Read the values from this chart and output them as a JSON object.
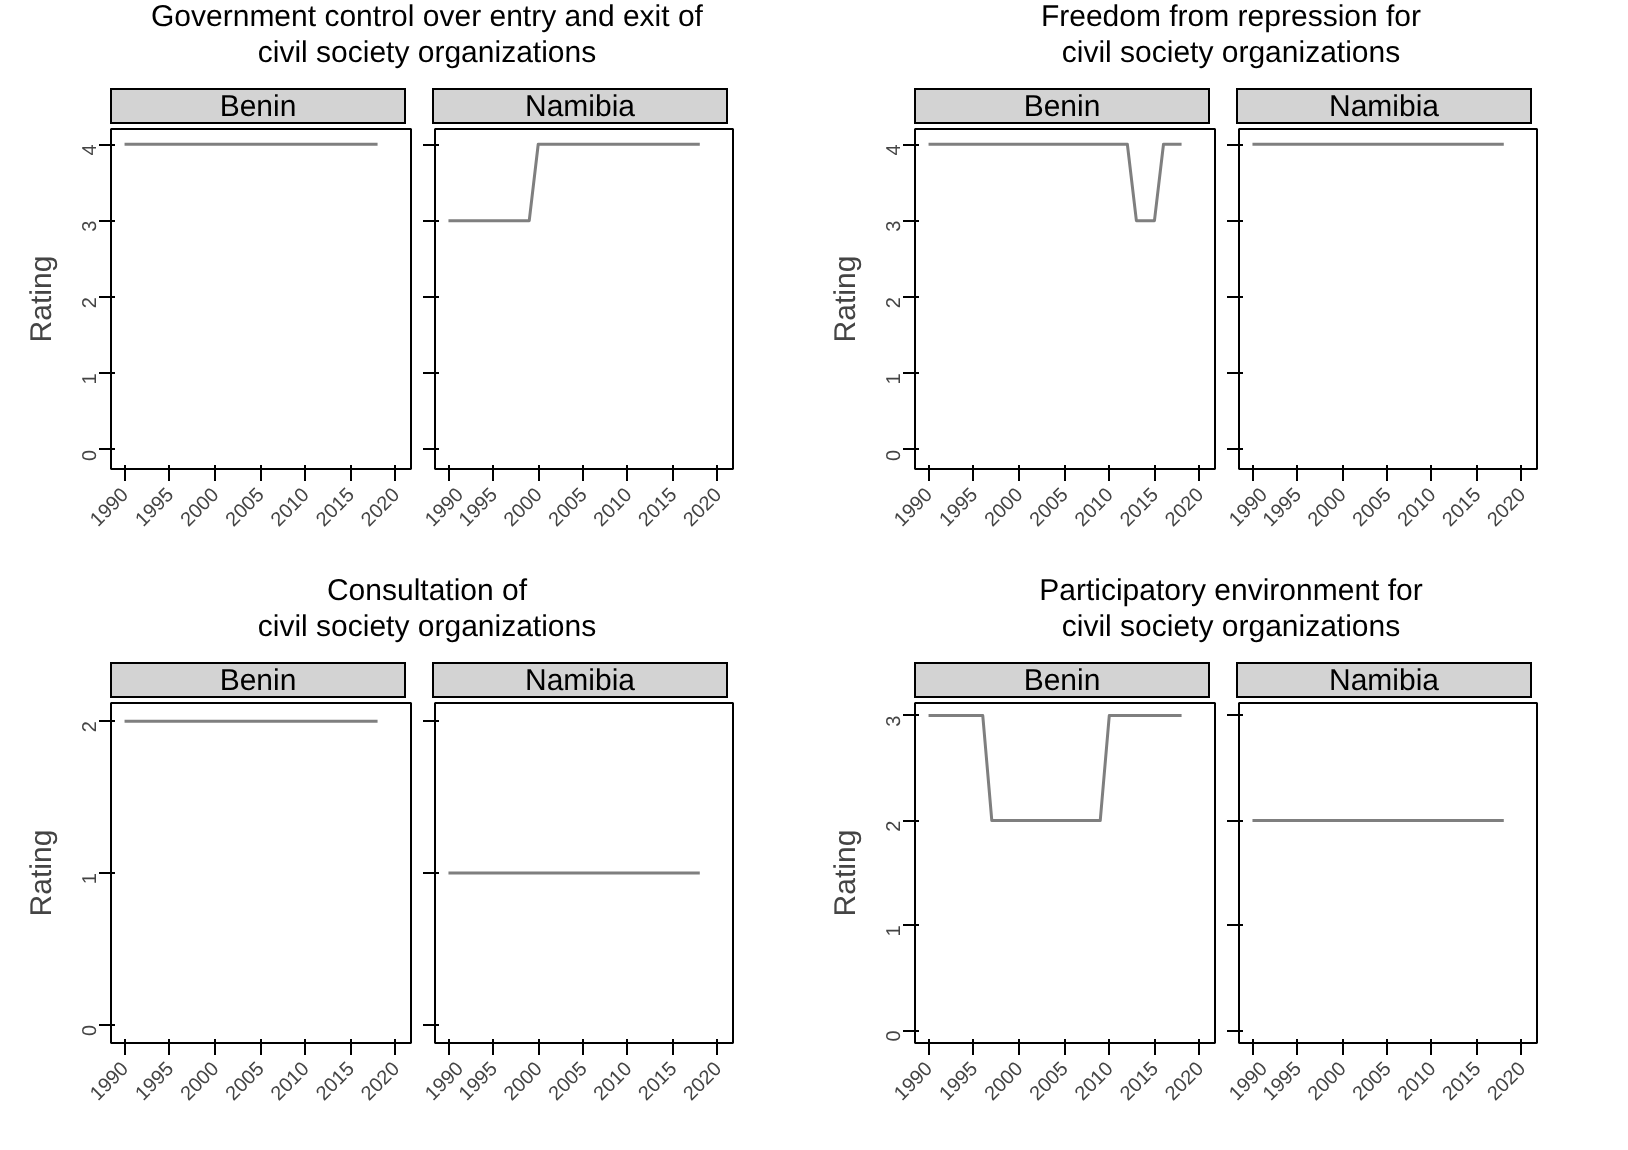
{
  "chart_data": [
    {
      "type": "line",
      "title": "Government control over entry and exit of\ncivil society organizations",
      "subtitle": "Benin",
      "ylabel": "Rating",
      "x": [
        1990,
        1991,
        1992,
        1993,
        1994,
        1995,
        1996,
        1997,
        1998,
        1999,
        2000,
        2001,
        2002,
        2003,
        2004,
        2005,
        2006,
        2007,
        2008,
        2009,
        2010,
        2011,
        2012,
        2013,
        2014,
        2015,
        2016,
        2017,
        2018
      ],
      "series": [
        {
          "color": "#7f7f7f",
          "values": [
            4,
            4,
            4,
            4,
            4,
            4,
            4,
            4,
            4,
            4,
            4,
            4,
            4,
            4,
            4,
            4,
            4,
            4,
            4,
            4,
            4,
            4,
            4,
            4,
            4,
            4,
            4,
            4,
            4
          ]
        }
      ],
      "xlim": [
        1988.5,
        2021.7
      ],
      "xticks": [
        1990,
        1995,
        2000,
        2005,
        2010,
        2015,
        2020
      ],
      "ylim": [
        -0.25,
        4.2
      ],
      "yticks": [
        0,
        1,
        2,
        3,
        4
      ]
    },
    {
      "type": "line",
      "subtitle": "Namibia",
      "x": [
        1990,
        1991,
        1992,
        1993,
        1994,
        1995,
        1996,
        1997,
        1998,
        1999,
        2000,
        2001,
        2002,
        2003,
        2004,
        2005,
        2006,
        2007,
        2008,
        2009,
        2010,
        2011,
        2012,
        2013,
        2014,
        2015,
        2016,
        2017,
        2018
      ],
      "series": [
        {
          "color": "#7f7f7f",
          "values": [
            3,
            3,
            3,
            3,
            3,
            3,
            3,
            3,
            3,
            3,
            4,
            4,
            4,
            4,
            4,
            4,
            4,
            4,
            4,
            4,
            4,
            4,
            4,
            4,
            4,
            4,
            4,
            4,
            4
          ]
        }
      ],
      "xlim": [
        1988.5,
        2021.7
      ],
      "xticks": [
        1990,
        1995,
        2000,
        2005,
        2010,
        2015,
        2020
      ],
      "ylim": [
        -0.25,
        4.2
      ],
      "yticks": [
        0,
        1,
        2,
        3,
        4
      ],
      "tick_labels": "x"
    },
    {
      "type": "line",
      "title": "Freedom from repression for\ncivil society organizations",
      "subtitle": "Benin",
      "ylabel": "Rating",
      "x": [
        1990,
        1991,
        1992,
        1993,
        1994,
        1995,
        1996,
        1997,
        1998,
        1999,
        2000,
        2001,
        2002,
        2003,
        2004,
        2005,
        2006,
        2007,
        2008,
        2009,
        2010,
        2011,
        2012,
        2013,
        2014,
        2015,
        2016,
        2017,
        2018
      ],
      "series": [
        {
          "color": "#7f7f7f",
          "values": [
            4,
            4,
            4,
            4,
            4,
            4,
            4,
            4,
            4,
            4,
            4,
            4,
            4,
            4,
            4,
            4,
            4,
            4,
            4,
            4,
            4,
            4,
            4,
            3,
            3,
            3,
            4,
            4,
            4
          ]
        }
      ],
      "xlim": [
        1988.5,
        2021.7
      ],
      "xticks": [
        1990,
        1995,
        2000,
        2005,
        2010,
        2015,
        2020
      ],
      "ylim": [
        -0.25,
        4.2
      ],
      "yticks": [
        0,
        1,
        2,
        3,
        4
      ]
    },
    {
      "type": "line",
      "subtitle": "Namibia",
      "x": [
        1990,
        1991,
        1992,
        1993,
        1994,
        1995,
        1996,
        1997,
        1998,
        1999,
        2000,
        2001,
        2002,
        2003,
        2004,
        2005,
        2006,
        2007,
        2008,
        2009,
        2010,
        2011,
        2012,
        2013,
        2014,
        2015,
        2016,
        2017,
        2018
      ],
      "series": [
        {
          "color": "#7f7f7f",
          "values": [
            4,
            4,
            4,
            4,
            4,
            4,
            4,
            4,
            4,
            4,
            4,
            4,
            4,
            4,
            4,
            4,
            4,
            4,
            4,
            4,
            4,
            4,
            4,
            4,
            4,
            4,
            4,
            4,
            4
          ]
        }
      ],
      "xlim": [
        1988.5,
        2021.7
      ],
      "xticks": [
        1990,
        1995,
        2000,
        2005,
        2010,
        2015,
        2020
      ],
      "ylim": [
        -0.25,
        4.2
      ],
      "yticks": [
        0,
        1,
        2,
        3,
        4
      ],
      "tick_labels": "x"
    },
    {
      "type": "line",
      "title": "Consultation of\ncivil society organizations",
      "subtitle": "Benin",
      "ylabel": "Rating",
      "x": [
        1990,
        1991,
        1992,
        1993,
        1994,
        1995,
        1996,
        1997,
        1998,
        1999,
        2000,
        2001,
        2002,
        2003,
        2004,
        2005,
        2006,
        2007,
        2008,
        2009,
        2010,
        2011,
        2012,
        2013,
        2014,
        2015,
        2016,
        2017,
        2018
      ],
      "series": [
        {
          "color": "#7f7f7f",
          "values": [
            2,
            2,
            2,
            2,
            2,
            2,
            2,
            2,
            2,
            2,
            2,
            2,
            2,
            2,
            2,
            2,
            2,
            2,
            2,
            2,
            2,
            2,
            2,
            2,
            2,
            2,
            2,
            2,
            2
          ]
        }
      ],
      "xlim": [
        1988.5,
        2021.7
      ],
      "xticks": [
        1990,
        1995,
        2000,
        2005,
        2010,
        2015,
        2020
      ],
      "ylim": [
        -0.12,
        2.12
      ],
      "yticks": [
        0,
        1,
        2
      ]
    },
    {
      "type": "line",
      "subtitle": "Namibia",
      "x": [
        1990,
        1991,
        1992,
        1993,
        1994,
        1995,
        1996,
        1997,
        1998,
        1999,
        2000,
        2001,
        2002,
        2003,
        2004,
        2005,
        2006,
        2007,
        2008,
        2009,
        2010,
        2011,
        2012,
        2013,
        2014,
        2015,
        2016,
        2017,
        2018
      ],
      "series": [
        {
          "color": "#7f7f7f",
          "values": [
            1,
            1,
            1,
            1,
            1,
            1,
            1,
            1,
            1,
            1,
            1,
            1,
            1,
            1,
            1,
            1,
            1,
            1,
            1,
            1,
            1,
            1,
            1,
            1,
            1,
            1,
            1,
            1,
            1
          ]
        }
      ],
      "xlim": [
        1988.5,
        2021.7
      ],
      "xticks": [
        1990,
        1995,
        2000,
        2005,
        2010,
        2015,
        2020
      ],
      "ylim": [
        -0.12,
        2.12
      ],
      "yticks": [
        0,
        1,
        2
      ],
      "tick_labels": "x"
    },
    {
      "type": "line",
      "title": "Participatory environment for\ncivil society organizations",
      "subtitle": "Benin",
      "ylabel": "Rating",
      "x": [
        1990,
        1991,
        1992,
        1993,
        1994,
        1995,
        1996,
        1997,
        1998,
        1999,
        2000,
        2001,
        2002,
        2003,
        2004,
        2005,
        2006,
        2007,
        2008,
        2009,
        2010,
        2011,
        2012,
        2013,
        2014,
        2015,
        2016,
        2017,
        2018
      ],
      "series": [
        {
          "color": "#7f7f7f",
          "values": [
            3,
            3,
            3,
            3,
            3,
            3,
            3,
            2,
            2,
            2,
            2,
            2,
            2,
            2,
            2,
            2,
            2,
            2,
            2,
            2,
            3,
            3,
            3,
            3,
            3,
            3,
            3,
            3,
            3
          ]
        }
      ],
      "xlim": [
        1988.5,
        2021.7
      ],
      "xticks": [
        1990,
        1995,
        2000,
        2005,
        2010,
        2015,
        2020
      ],
      "ylim": [
        -0.12,
        3.12
      ],
      "yticks": [
        0,
        1,
        2,
        3
      ]
    },
    {
      "type": "line",
      "subtitle": "Namibia",
      "x": [
        1990,
        1991,
        1992,
        1993,
        1994,
        1995,
        1996,
        1997,
        1998,
        1999,
        2000,
        2001,
        2002,
        2003,
        2004,
        2005,
        2006,
        2007,
        2008,
        2009,
        2010,
        2011,
        2012,
        2013,
        2014,
        2015,
        2016,
        2017,
        2018
      ],
      "series": [
        {
          "color": "#7f7f7f",
          "values": [
            2,
            2,
            2,
            2,
            2,
            2,
            2,
            2,
            2,
            2,
            2,
            2,
            2,
            2,
            2,
            2,
            2,
            2,
            2,
            2,
            2,
            2,
            2,
            2,
            2,
            2,
            2,
            2,
            2
          ]
        }
      ],
      "xlim": [
        1988.5,
        2021.7
      ],
      "xticks": [
        1990,
        1995,
        2000,
        2005,
        2010,
        2015,
        2020
      ],
      "ylim": [
        -0.12,
        3.12
      ],
      "yticks": [
        0,
        1,
        2,
        3
      ],
      "tick_labels": "x"
    }
  ]
}
